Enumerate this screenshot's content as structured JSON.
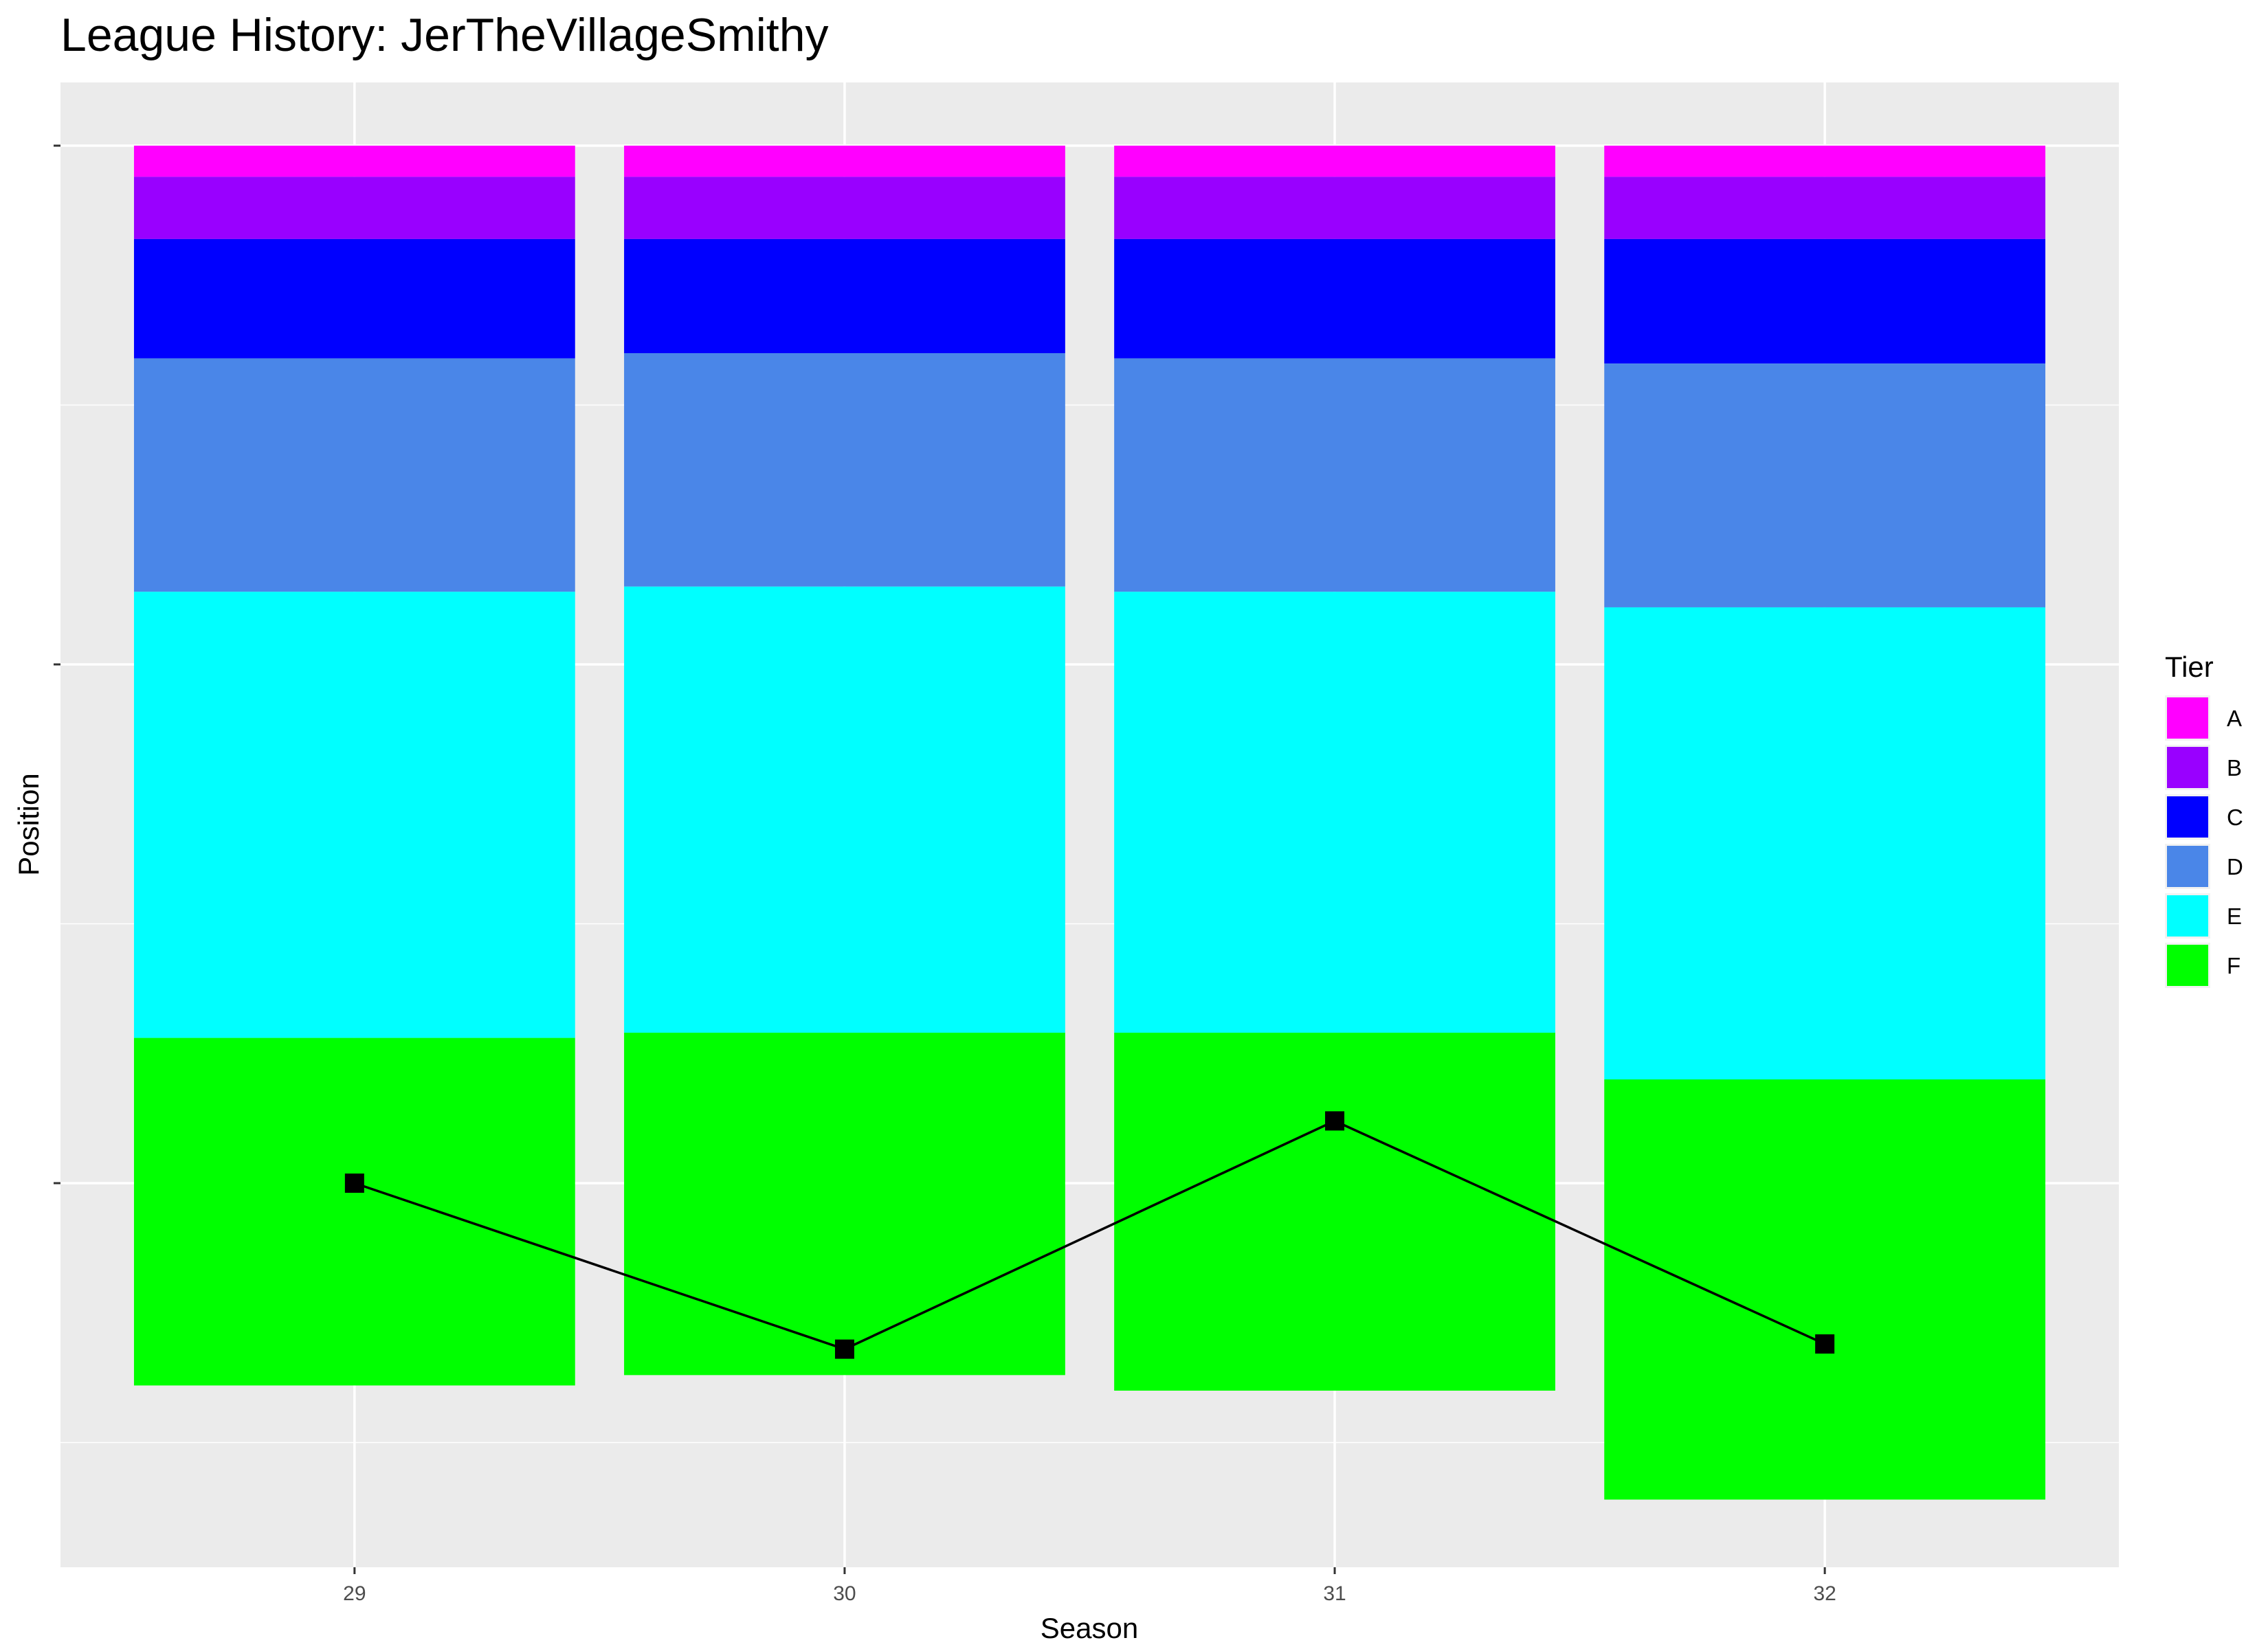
{
  "chart_data": {
    "type": "bar",
    "subtype": "stacked-bar-with-line",
    "title": "League History: JerTheVillageSmithy",
    "xlabel": "Season",
    "ylabel": "Position",
    "categories": [
      "29",
      "30",
      "31",
      "32"
    ],
    "y_reversed": true,
    "ylim": [
      0,
      272
    ],
    "y_ticks": [
      0,
      100,
      200
    ],
    "y_tick_labels_shown": false,
    "grid": true,
    "legend": {
      "title": "Tier",
      "placement": "right",
      "items": [
        "A",
        "B",
        "C",
        "D",
        "E",
        "F"
      ]
    },
    "series": [
      {
        "name": "A",
        "color": "#FF00FF",
        "values": [
          6,
          6,
          6,
          6
        ]
      },
      {
        "name": "B",
        "color": "#9900FF",
        "values": [
          12,
          12,
          12,
          12
        ]
      },
      {
        "name": "C",
        "color": "#0000FF",
        "values": [
          23,
          22,
          23,
          24
        ]
      },
      {
        "name": "D",
        "color": "#4A86E8",
        "values": [
          45,
          45,
          45,
          47
        ]
      },
      {
        "name": "E",
        "color": "#00FFFF",
        "values": [
          86,
          86,
          85,
          91
        ]
      },
      {
        "name": "F",
        "color": "#00FF00",
        "values": [
          67,
          66,
          69,
          81
        ]
      }
    ],
    "line_series": {
      "name": "Position",
      "color": "#000000",
      "marker": "square",
      "values": [
        200,
        232,
        188,
        231
      ]
    }
  }
}
